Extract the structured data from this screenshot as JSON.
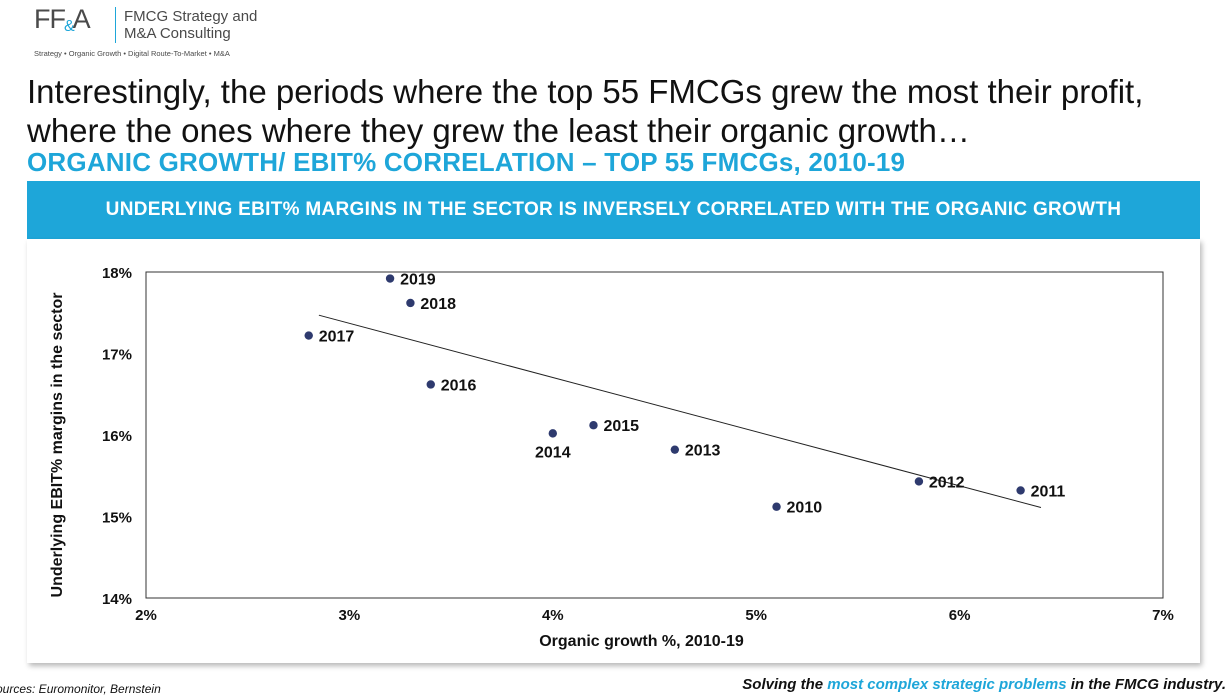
{
  "brand": {
    "mark_left": "FF",
    "mark_amp": "&",
    "mark_right": "A",
    "name": "FMCG Strategy and\nM&A Consulting",
    "tagline": "Strategy • Organic Growth • Digital Route-To-Market • M&A",
    "accent_color": "#1ea6d9"
  },
  "headline": "Interestingly, the periods where the top 55 FMCGs grew the most their profit, where the ones where they grew the least their organic growth…",
  "subtitle": "ORGANIC GROWTH/ EBIT% CORRELATION – TOP 55 FMCGs, 2010-19",
  "banner": "UNDERLYING EBIT% MARGINS IN THE SECTOR IS INVERSELY CORRELATED WITH THE ORGANIC GROWTH",
  "footer": {
    "sources": "ources: Euromonitor, Bernstein",
    "slogan_before": "Solving the ",
    "slogan_highlight": "most complex strategic problems",
    "slogan_after": " in the FMCG industry."
  },
  "chart_data": {
    "type": "scatter",
    "xlabel": "Organic growth %, 2010-19",
    "ylabel_before": "Underlying ",
    "ylabel_bold": "EBIT%",
    "ylabel_after": " margins in the sector",
    "xlim": [
      2,
      7
    ],
    "ylim": [
      14,
      18
    ],
    "x_ticks": [
      2,
      3,
      4,
      5,
      6,
      7
    ],
    "x_tick_labels": [
      "2%",
      "3%",
      "4%",
      "5%",
      "6%",
      "7%"
    ],
    "y_ticks": [
      14,
      15,
      16,
      17,
      18
    ],
    "y_tick_labels": [
      "14%",
      "15%",
      "16%",
      "17%",
      "18%"
    ],
    "grid": false,
    "point_color": "#2e3a6e",
    "points": [
      {
        "label": "2010",
        "x": 5.1,
        "y": 15.12
      },
      {
        "label": "2011",
        "x": 6.3,
        "y": 15.32
      },
      {
        "label": "2012",
        "x": 5.8,
        "y": 15.43
      },
      {
        "label": "2013",
        "x": 4.6,
        "y": 15.82
      },
      {
        "label": "2014",
        "x": 4.0,
        "y": 16.02
      },
      {
        "label": "2015",
        "x": 4.2,
        "y": 16.12
      },
      {
        "label": "2016",
        "x": 3.4,
        "y": 16.62
      },
      {
        "label": "2017",
        "x": 2.8,
        "y": 17.22
      },
      {
        "label": "2018",
        "x": 3.3,
        "y": 17.62
      },
      {
        "label": "2019",
        "x": 3.2,
        "y": 17.92
      }
    ],
    "trendline": {
      "x": [
        2.85,
        6.4
      ],
      "y": [
        17.47,
        15.11
      ]
    }
  }
}
